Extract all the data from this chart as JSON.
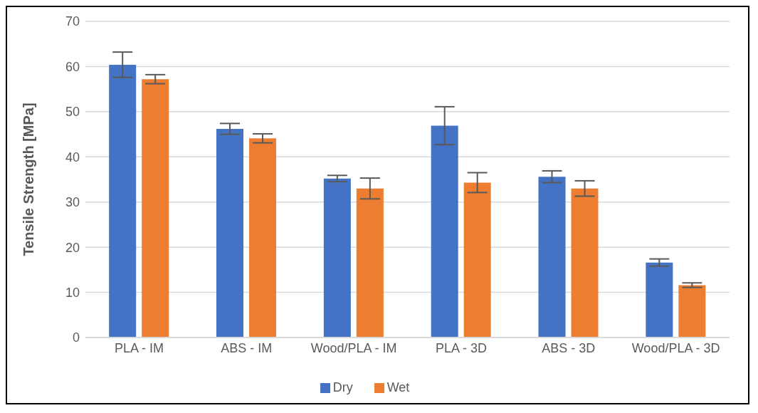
{
  "chart_data": {
    "type": "bar",
    "ylabel": "Tensile Strength [MPa]",
    "categories": [
      "PLA - IM",
      "ABS - IM",
      "Wood/PLA - IM",
      "PLA - 3D",
      "ABS - 3D",
      "Wood/PLA - 3D"
    ],
    "series": [
      {
        "name": "Dry",
        "color": "#4472c4",
        "values": [
          60.4,
          46.2,
          35.2,
          46.9,
          35.6,
          16.6
        ],
        "errors": [
          2.8,
          1.2,
          0.7,
          4.2,
          1.3,
          0.8
        ]
      },
      {
        "name": "Wet",
        "color": "#ed7d31",
        "values": [
          57.2,
          44.1,
          33.0,
          34.3,
          33.0,
          11.6
        ],
        "errors": [
          1.0,
          1.0,
          2.3,
          2.2,
          1.7,
          0.5
        ]
      }
    ],
    "ylim": [
      0,
      70
    ],
    "yticks": [
      0,
      10,
      20,
      30,
      40,
      50,
      60,
      70
    ],
    "grid": "y",
    "legend": "bottom"
  }
}
